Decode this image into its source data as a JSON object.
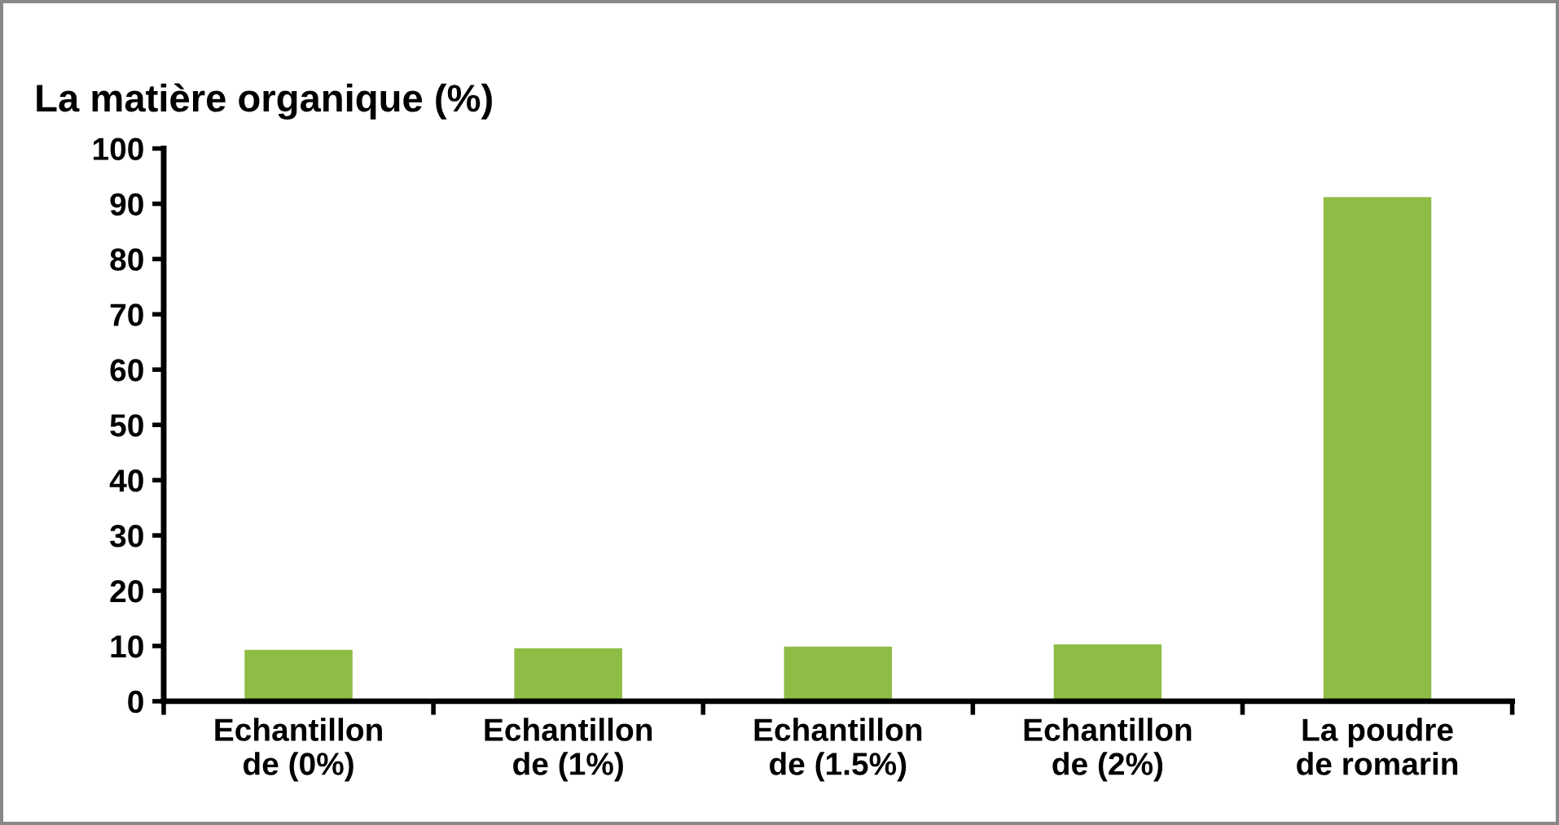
{
  "chart_data": {
    "type": "bar",
    "title": "La matière organique (%)",
    "categories": [
      "Echantillon\nde (0%)",
      "Echantillon\nde (1%)",
      "Echantillon\nde (1.5%)",
      "Echantillon\nde (2%)",
      "La poudre\nde romarin"
    ],
    "values": [
      9.3,
      9.6,
      9.9,
      10.3,
      91.2
    ],
    "color": "#8fbc45",
    "ylim": [
      0,
      100
    ],
    "yticks": [
      0,
      10,
      20,
      30,
      40,
      50,
      60,
      70,
      80,
      90,
      100
    ],
    "grid": false
  }
}
